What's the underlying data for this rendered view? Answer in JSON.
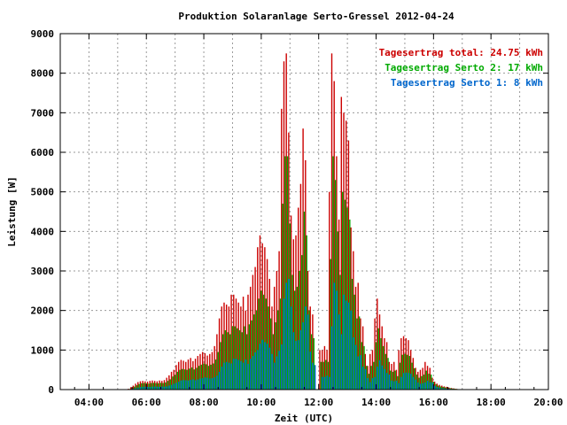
{
  "chart_data": {
    "type": "bar",
    "title": "Produktion Solaranlage Serto-Gressel 2012-04-24",
    "xlabel": "Zeit (UTC)",
    "ylabel": "Leistung [W]",
    "x_ticks": [
      "04:00",
      "06:00",
      "08:00",
      "10:00",
      "12:00",
      "14:00",
      "16:00",
      "18:00",
      "20:00"
    ],
    "y_ticks": [
      "0",
      "1000",
      "2000",
      "3000",
      "4000",
      "5000",
      "6000",
      "7000",
      "8000",
      "9000"
    ],
    "xlim_hours": [
      3,
      20
    ],
    "ylim": [
      0,
      9000
    ],
    "grid": true,
    "legend_position": "top-right",
    "interval_minutes": 5,
    "start_time": "05:25",
    "end_time": "18:15",
    "series": [
      {
        "name": "Tagesertrag total: 24.75 kWh",
        "color": "#cc0000",
        "values": [
          20,
          60,
          100,
          150,
          190,
          210,
          220,
          210,
          200,
          220,
          230,
          220,
          210,
          230,
          220,
          240,
          300,
          360,
          450,
          500,
          620,
          700,
          750,
          730,
          700,
          760,
          800,
          720,
          780,
          850,
          900,
          950,
          920,
          860,
          900,
          950,
          1100,
          1400,
          1800,
          2100,
          2200,
          2150,
          2100,
          2400,
          2400,
          2300,
          2200,
          2100,
          2350,
          2000,
          2400,
          2600,
          2900,
          3100,
          3600,
          3900,
          3700,
          3600,
          3300,
          2800,
          2100,
          2600,
          3000,
          3500,
          7100,
          8300,
          8500,
          6500,
          4400,
          3800,
          3900,
          4600,
          5200,
          6600,
          5800,
          3000,
          2100,
          1900,
          0,
          0,
          1000,
          1000,
          1100,
          1000,
          5000,
          8500,
          7800,
          5900,
          4300,
          7400,
          7000,
          6800,
          6300,
          4100,
          3500,
          2600,
          2700,
          1800,
          1600,
          900,
          600,
          900,
          1000,
          1800,
          2300,
          1900,
          1600,
          1300,
          1200,
          700,
          650,
          700,
          500,
          1000,
          1300,
          1350,
          1300,
          1250,
          1000,
          800,
          550,
          450,
          500,
          550,
          700,
          600,
          550,
          300,
          200,
          150,
          120,
          100,
          80,
          70,
          50,
          40,
          30,
          20,
          10,
          10,
          10,
          5,
          5,
          5,
          5,
          5,
          5,
          5,
          5,
          5,
          5,
          5,
          5,
          5,
          5,
          5,
          5,
          5
        ]
      },
      {
        "name": "Tagesertrag Serto 2: 17 kWh",
        "color": "#00aa00",
        "values": [
          15,
          45,
          75,
          110,
          140,
          160,
          165,
          160,
          150,
          165,
          170,
          165,
          160,
          170,
          165,
          180,
          220,
          260,
          330,
          370,
          450,
          500,
          520,
          510,
          500,
          530,
          560,
          510,
          550,
          600,
          630,
          660,
          640,
          600,
          630,
          660,
          760,
          950,
          1200,
          1400,
          1500,
          1450,
          1400,
          1600,
          1600,
          1550,
          1500,
          1450,
          1600,
          1400,
          1650,
          1750,
          1900,
          2000,
          2300,
          2500,
          2400,
          2300,
          2100,
          1800,
          1400,
          1700,
          2000,
          2300,
          4700,
          5900,
          5900,
          4200,
          2900,
          2500,
          2600,
          3000,
          3400,
          4500,
          3900,
          2000,
          1400,
          1300,
          0,
          0,
          700,
          700,
          750,
          700,
          3300,
          5900,
          5300,
          4000,
          2900,
          5000,
          4800,
          4600,
          4300,
          2800,
          2400,
          1800,
          1850,
          1200,
          1100,
          600,
          400,
          600,
          700,
          1200,
          1550,
          1300,
          1100,
          900,
          800,
          480,
          450,
          480,
          340,
          680,
          880,
          900,
          880,
          850,
          680,
          540,
          380,
          300,
          340,
          380,
          480,
          400,
          380,
          200,
          140,
          100,
          80,
          70,
          55,
          50,
          35,
          28,
          20,
          14,
          7,
          7,
          7,
          3,
          3,
          3,
          3,
          3,
          3,
          3,
          3,
          3,
          3,
          3,
          3,
          3,
          3,
          3,
          3,
          3
        ]
      },
      {
        "name": "Tagesertrag Serto 1: 8 kWh",
        "color": "#0066cc",
        "values": [
          7,
          20,
          35,
          50,
          65,
          70,
          75,
          70,
          68,
          75,
          78,
          75,
          70,
          78,
          75,
          80,
          100,
          120,
          150,
          170,
          200,
          230,
          240,
          235,
          230,
          245,
          260,
          235,
          255,
          280,
          290,
          310,
          300,
          280,
          290,
          310,
          350,
          450,
          580,
          680,
          700,
          680,
          660,
          780,
          780,
          750,
          720,
          680,
          760,
          650,
          780,
          850,
          940,
          1000,
          1160,
          1260,
          1200,
          1160,
          1060,
          900,
          680,
          840,
          980,
          1140,
          2300,
          2700,
          2800,
          2100,
          1450,
          1230,
          1250,
          1500,
          1700,
          2100,
          1900,
          960,
          680,
          620,
          0,
          0,
          320,
          320,
          350,
          320,
          1600,
          2700,
          2500,
          1900,
          1400,
          2400,
          2250,
          2200,
          2000,
          1320,
          1130,
          840,
          870,
          580,
          520,
          290,
          190,
          290,
          320,
          580,
          740,
          610,
          520,
          420,
          380,
          225,
          210,
          225,
          160,
          320,
          420,
          430,
          420,
          400,
          320,
          255,
          180,
          145,
          160,
          180,
          225,
          190,
          180,
          95,
          65,
          48,
          38,
          32,
          25,
          22,
          16,
          13,
          10,
          6,
          3,
          3,
          3,
          2,
          2,
          2,
          2,
          2,
          2,
          2,
          2,
          2,
          2,
          2,
          2,
          2,
          2,
          2,
          2,
          2
        ]
      }
    ]
  }
}
